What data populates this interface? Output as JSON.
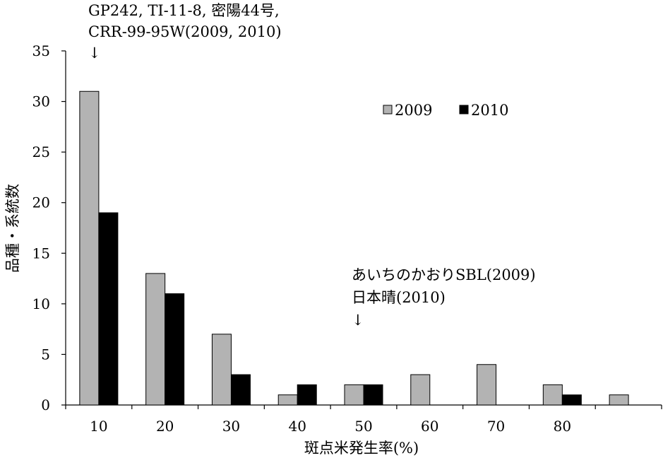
{
  "chart_data": {
    "type": "bar",
    "title": "",
    "xlabel": "斑点米発生率(%)",
    "ylabel": "品種・系統数",
    "ylim": [
      0,
      35
    ],
    "yticks": [
      0,
      5,
      10,
      15,
      20,
      25,
      30,
      35
    ],
    "categories": [
      "10",
      "20",
      "30",
      "40",
      "50",
      "60",
      "70",
      "80",
      ""
    ],
    "series": [
      {
        "name": "2009",
        "color": "#b3b3b3",
        "values": [
          31,
          13,
          7,
          1,
          2,
          3,
          4,
          2,
          1
        ]
      },
      {
        "name": "2010",
        "color": "#000000",
        "values": [
          19,
          11,
          3,
          2,
          2,
          0,
          0,
          1,
          0
        ]
      }
    ],
    "legend_position": "top-right",
    "grid": false,
    "annotations": [
      {
        "lines": [
          "GP242, TI-11-8, 密陽44号,",
          "CRR-99-95W(2009, 2010)"
        ],
        "arrow": "↓",
        "category_index": 0
      },
      {
        "lines": [
          "あいちのかおりSBL(2009)",
          "日本晴(2010)"
        ],
        "arrow": "↓",
        "category_index": 4
      }
    ]
  }
}
